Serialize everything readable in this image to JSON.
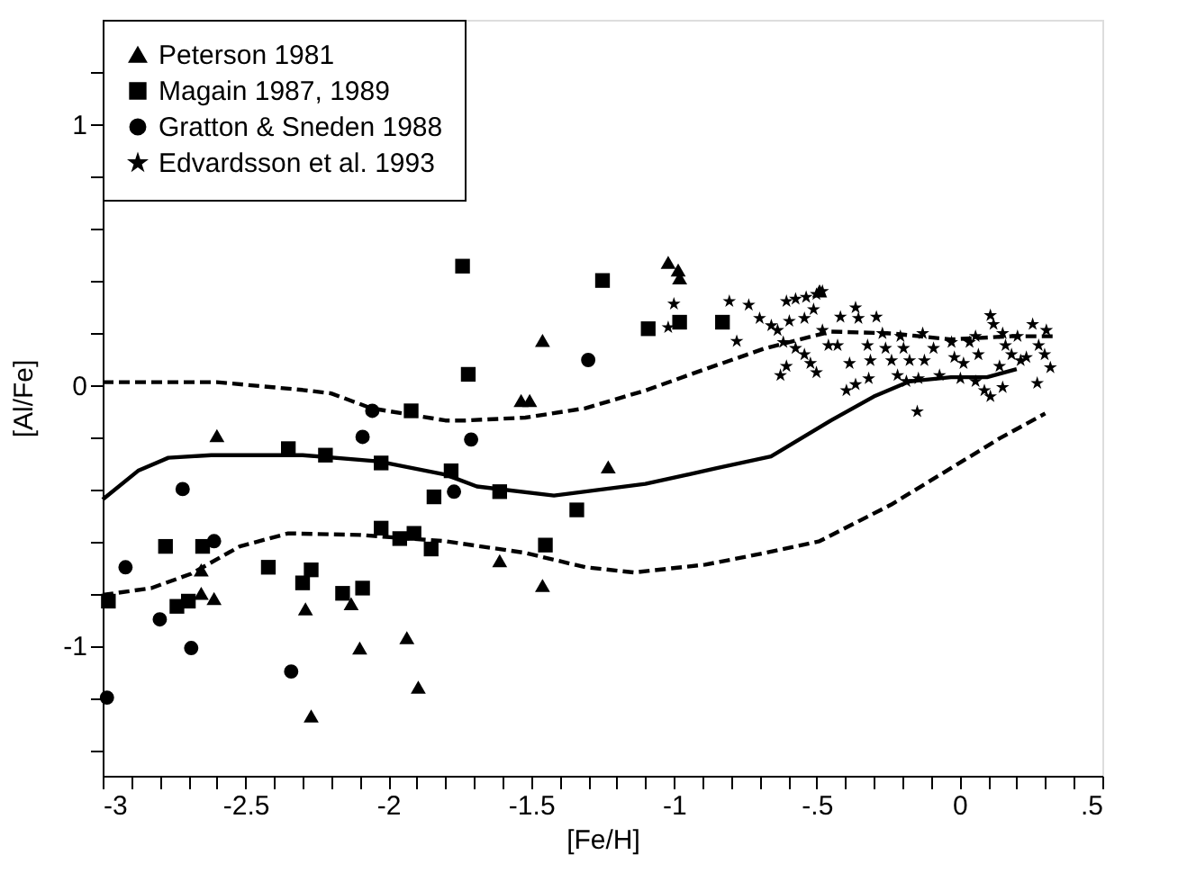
{
  "chart_data": {
    "type": "scatter",
    "xlabel": "[Fe/H]",
    "ylabel": "[Al/Fe]",
    "xlim": [
      -3,
      0.5
    ],
    "ylim": [
      -1.5,
      1.4
    ],
    "xticks": [
      -3,
      {
        "value": -2.9,
        "label": null
      },
      {
        "value": -2.8,
        "label": null
      },
      {
        "value": -2.7,
        "label": null
      },
      {
        "value": -2.6,
        "label": null
      },
      -2.5,
      {
        "value": -2.4,
        "label": null
      },
      {
        "value": -2.3,
        "label": null
      },
      {
        "value": -2.2,
        "label": null
      },
      {
        "value": -2.1,
        "label": null
      },
      -2,
      {
        "value": -1.9,
        "label": null
      },
      {
        "value": -1.8,
        "label": null
      },
      {
        "value": -1.7,
        "label": null
      },
      {
        "value": -1.6,
        "label": null
      },
      -1.5,
      {
        "value": -1.4,
        "label": null
      },
      {
        "value": -1.3,
        "label": null
      },
      {
        "value": -1.2,
        "label": null
      },
      {
        "value": -1.1,
        "label": null
      },
      -1,
      {
        "value": -0.9,
        "label": null
      },
      {
        "value": -0.8,
        "label": null
      },
      {
        "value": -0.7,
        "label": null
      },
      {
        "value": -0.6,
        "label": null
      },
      {
        "value": -0.5,
        "label": "-.5"
      },
      {
        "value": -0.4,
        "label": null
      },
      {
        "value": -0.3,
        "label": null
      },
      {
        "value": -0.2,
        "label": null
      },
      {
        "value": -0.1,
        "label": null
      },
      0,
      {
        "value": 0.1,
        "label": null
      },
      {
        "value": 0.2,
        "label": null
      },
      {
        "value": 0.3,
        "label": null
      },
      {
        "value": 0.4,
        "label": null
      },
      {
        "value": 0.5,
        "label": ".5"
      }
    ],
    "yticks": [
      {
        "value": -1.4,
        "label": null
      },
      {
        "value": -1.2,
        "label": null
      },
      -1,
      {
        "value": -0.8,
        "label": null
      },
      {
        "value": -0.6,
        "label": null
      },
      {
        "value": -0.4,
        "label": null
      },
      {
        "value": -0.2,
        "label": null
      },
      0,
      {
        "value": 0.2,
        "label": null
      },
      {
        "value": 0.4,
        "label": null
      },
      {
        "value": 0.6,
        "label": null
      },
      {
        "value": 0.8,
        "label": null
      },
      1,
      {
        "value": 1.2,
        "label": null
      }
    ],
    "grid": false,
    "legend": "top left",
    "series": [
      {
        "name": "Peterson 1981",
        "marker": "triangle",
        "color": "#000000",
        "x": [
          -2.6,
          -2.655,
          -2.655,
          -2.61,
          -2.13,
          -2.29,
          -2.1,
          -1.935,
          -1.895,
          -2.27,
          -1.02,
          -0.985,
          -0.98,
          -1.46,
          -1.535,
          -1.505,
          -1.23,
          -1.61,
          -1.46,
          -0.49
        ],
        "values": [
          -0.195,
          -0.71,
          -0.8,
          -0.82,
          -0.84,
          -0.86,
          -1.01,
          -0.97,
          -1.16,
          -1.27,
          0.47,
          0.44,
          0.41,
          0.17,
          -0.06,
          -0.06,
          -0.315,
          -0.675,
          -0.77,
          0.36
        ]
      },
      {
        "name": "Magain 1987, 1989",
        "marker": "square",
        "color": "#000000",
        "x": [
          -1.92,
          -2.35,
          -2.22,
          -2.025,
          -1.78,
          -1.84,
          -2.78,
          -2.65,
          -2.025,
          -1.96,
          -1.91,
          -1.85,
          -2.42,
          -2.27,
          -2.3,
          -2.98,
          -2.74,
          -2.7,
          -2.16,
          -2.09,
          -1.74,
          -1.25,
          -1.09,
          -0.98,
          -0.83,
          -1.72,
          -1.61,
          -1.34,
          -1.45
        ],
        "values": [
          -0.1,
          -0.245,
          -0.27,
          -0.3,
          -0.33,
          -0.43,
          -0.62,
          -0.62,
          -0.55,
          -0.59,
          -0.57,
          -0.63,
          -0.7,
          -0.71,
          -0.76,
          -0.83,
          -0.85,
          -0.83,
          -0.8,
          -0.78,
          0.455,
          0.4,
          0.215,
          0.24,
          0.24,
          0.04,
          -0.41,
          -0.48,
          -0.615
        ]
      },
      {
        "name": "Gratton & Sneden 1988",
        "marker": "circle",
        "color": "#000000",
        "x": [
          -2.056,
          -2.09,
          -2.72,
          -2.61,
          -2.92,
          -2.8,
          -2.69,
          -2.34,
          -2.985,
          -1.3,
          -1.71,
          -1.77
        ],
        "values": [
          -0.1,
          -0.2,
          -0.4,
          -0.6,
          -0.7,
          -0.9,
          -1.01,
          -1.1,
          -1.2,
          0.095,
          -0.21,
          -0.41
        ]
      },
      {
        "name": "Edvardsson et al. 1993",
        "marker": "star",
        "color": "#000000",
        "x": [
          -1.0,
          -1.02,
          -0.806,
          -0.738,
          -0.78,
          -0.7,
          -0.659,
          -0.637,
          -0.606,
          -0.574,
          -0.537,
          -0.501,
          -0.48,
          -0.511,
          -0.543,
          -0.596,
          -0.617,
          -0.574,
          -0.543,
          -0.522,
          -0.501,
          -0.606,
          -0.627,
          -0.48,
          -0.459,
          -0.427,
          -0.417,
          -0.364,
          -0.354,
          -0.291,
          -0.385,
          -0.364,
          -0.396,
          -0.322,
          -0.312,
          -0.318,
          -0.27,
          -0.259,
          -0.238,
          -0.207,
          -0.196,
          -0.175,
          -0.217,
          -0.186,
          -0.144,
          -0.129,
          -0.123,
          -0.091,
          -0.07,
          -0.148,
          -0.028,
          -0.018,
          0.014,
          0.035,
          0.056,
          0.066,
          0.003,
          0.056,
          0.087,
          0.108,
          0.108,
          0.119,
          0.151,
          0.161,
          0.14,
          0.151,
          0.182,
          0.203,
          0.214,
          0.234,
          0.256,
          0.304,
          0.277,
          0.298,
          0.318,
          0.272
        ],
        "values": [
          0.31,
          0.22,
          0.32,
          0.306,
          0.167,
          0.255,
          0.227,
          0.209,
          0.32,
          0.329,
          0.336,
          0.347,
          0.359,
          0.289,
          0.255,
          0.244,
          0.163,
          0.14,
          0.116,
          0.082,
          0.047,
          0.071,
          0.036,
          0.209,
          0.151,
          0.151,
          0.26,
          0.296,
          0.255,
          0.26,
          0.082,
          0.001,
          -0.022,
          0.151,
          0.093,
          0.024,
          0.197,
          0.14,
          0.093,
          0.186,
          0.14,
          0.093,
          0.036,
          0.013,
          0.024,
          0.197,
          0.093,
          0.14,
          0.036,
          -0.103,
          0.163,
          0.105,
          0.082,
          0.163,
          0.186,
          0.116,
          0.024,
          0.013,
          -0.022,
          -0.045,
          0.266,
          0.232,
          0.197,
          0.151,
          0.071,
          -0.01,
          0.116,
          0.186,
          0.093,
          0.105,
          0.232,
          0.209,
          0.151,
          0.116,
          0.066,
          0.006
        ]
      },
      {
        "type": "line",
        "line_style": "solid",
        "color": "#000000",
        "x": [
          -3.0,
          -2.876,
          -2.77,
          -2.62,
          -2.3,
          -2.035,
          -1.8,
          -1.69,
          -1.42,
          -1.1,
          -0.85,
          -0.66,
          -0.45,
          -0.3,
          -0.175,
          -0.03,
          0.096,
          0.2
        ],
        "values": [
          -0.44,
          -0.33,
          -0.28,
          -0.27,
          -0.27,
          -0.294,
          -0.345,
          -0.39,
          -0.425,
          -0.38,
          -0.32,
          -0.275,
          -0.137,
          -0.045,
          0.013,
          0.029,
          0.029,
          0.06
        ]
      },
      {
        "type": "line",
        "line_style": "dashed",
        "color": "#000000",
        "x": [
          -3.0,
          -2.6,
          -2.3,
          -2.2,
          -2.06,
          -1.8,
          -1.73,
          -1.52,
          -1.31,
          -1.1,
          -0.89,
          -0.68,
          -0.45,
          -0.24,
          -0.03,
          0.18,
          0.33
        ],
        "values": [
          0.01,
          0.01,
          -0.02,
          -0.033,
          -0.09,
          -0.137,
          -0.137,
          -0.126,
          -0.09,
          -0.022,
          0.06,
          0.14,
          0.204,
          0.197,
          0.174,
          0.186,
          0.186
        ]
      },
      {
        "type": "line",
        "line_style": "dashed",
        "color": "#000000",
        "x": [
          -3.0,
          -2.83,
          -2.69,
          -2.52,
          -2.35,
          -2.1,
          -1.8,
          -1.52,
          -1.31,
          -1.14,
          -0.89,
          -0.68,
          -0.49,
          -0.24,
          -0.03,
          0.14,
          0.3
        ],
        "values": [
          -0.806,
          -0.78,
          -0.725,
          -0.62,
          -0.57,
          -0.576,
          -0.6,
          -0.645,
          -0.7,
          -0.72,
          -0.69,
          -0.645,
          -0.6,
          -0.46,
          -0.32,
          -0.206,
          -0.11
        ]
      }
    ]
  }
}
